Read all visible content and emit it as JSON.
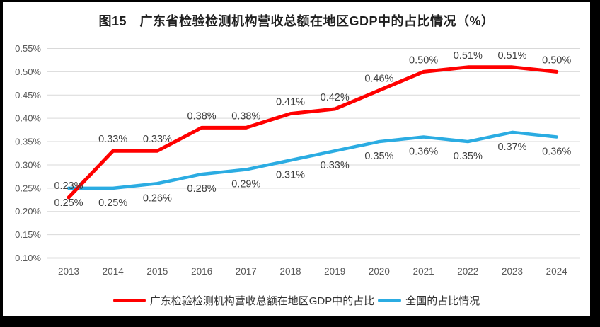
{
  "title": "图15　广东省检验检测机构营收总额在地区GDP中的占比情况（%）",
  "colors": {
    "background": "#ffffff",
    "frame": "#000000",
    "gridline": "#d9d9d9",
    "axis_line": "#bfbfbf",
    "tick_text": "#595959",
    "data_label_text": "#3f3f3f",
    "series_red": "#ff0000",
    "series_blue": "#2bace2"
  },
  "chart_data": {
    "type": "line",
    "title": "图15　广东省检验检测机构营收总额在地区GDP中的占比情况（%）",
    "x": [
      "2013",
      "2014",
      "2015",
      "2016",
      "2017",
      "2018",
      "2019",
      "2020",
      "2021",
      "2022",
      "2023",
      "2024"
    ],
    "series": [
      {
        "name": "广东检验检测机构营收总额在地区GDP中的占比",
        "color": "#ff0000",
        "values": [
          0.23,
          0.33,
          0.33,
          0.38,
          0.38,
          0.41,
          0.42,
          0.46,
          0.5,
          0.51,
          0.51,
          0.5
        ],
        "labels": [
          "0.23%",
          "0.33%",
          "0.33%",
          "0.38%",
          "0.38%",
          "0.41%",
          "0.42%",
          "0.46%",
          "0.50%",
          "0.51%",
          "0.51%",
          "0.50%"
        ],
        "label_position": "above"
      },
      {
        "name": "全国的占比情况",
        "color": "#2bace2",
        "values": [
          0.25,
          0.25,
          0.26,
          0.28,
          0.29,
          0.31,
          0.33,
          0.35,
          0.36,
          0.35,
          0.37,
          0.36
        ],
        "labels": [
          "0.25%",
          "0.25%",
          "0.26%",
          "0.28%",
          "0.29%",
          "0.31%",
          "0.33%",
          "0.35%",
          "0.36%",
          "0.35%",
          "0.37%",
          "0.36%"
        ],
        "label_position": "below"
      }
    ],
    "xlabel": "",
    "ylabel": "",
    "y_ticks": [
      "0.55%",
      "0.50%",
      "0.45%",
      "0.40%",
      "0.35%",
      "0.30%",
      "0.25%",
      "0.20%",
      "0.15%",
      "0.10%"
    ],
    "ylim": [
      0.1,
      0.55
    ],
    "grid": "horizontal",
    "legend_position": "bottom"
  }
}
